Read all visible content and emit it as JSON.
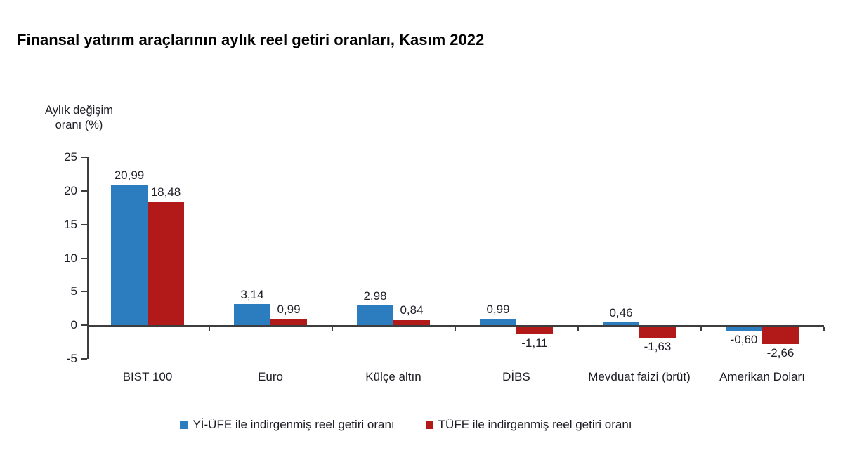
{
  "chart_data": {
    "type": "bar",
    "title": "Finansal yatırım araçlarının aylık reel getiri oranları, Kasım 2022",
    "ylabel_lines": [
      "Aylık değişim",
      "oranı (%)"
    ],
    "categories": [
      "BIST 100",
      "Euro",
      "Külçe altın",
      "DİBS",
      "Mevduat faizi (brüt)",
      "Amerikan Doları"
    ],
    "series": [
      {
        "name": "Yİ-ÜFE ile indirgenmiş reel getiri oranı",
        "color": "#2B7DC0",
        "values": [
          20.99,
          3.14,
          2.98,
          0.99,
          0.46,
          -0.6
        ],
        "labels": [
          "20,99",
          "3,14",
          "2,98",
          "0,99",
          "0,46",
          "-0,60"
        ]
      },
      {
        "name": "TÜFE ile indirgenmiş reel getiri oranı",
        "color": "#B21919",
        "values": [
          18.48,
          0.99,
          0.84,
          -1.11,
          -1.63,
          -2.66
        ],
        "labels": [
          "18,48",
          "0,99",
          "0,84",
          "-1,11",
          "-1,63",
          "-2,66"
        ]
      }
    ],
    "yticks": [
      25,
      20,
      15,
      10,
      5,
      0,
      -5
    ],
    "ylim": [
      -5,
      25
    ],
    "grid": false,
    "legend_position": "bottom"
  }
}
